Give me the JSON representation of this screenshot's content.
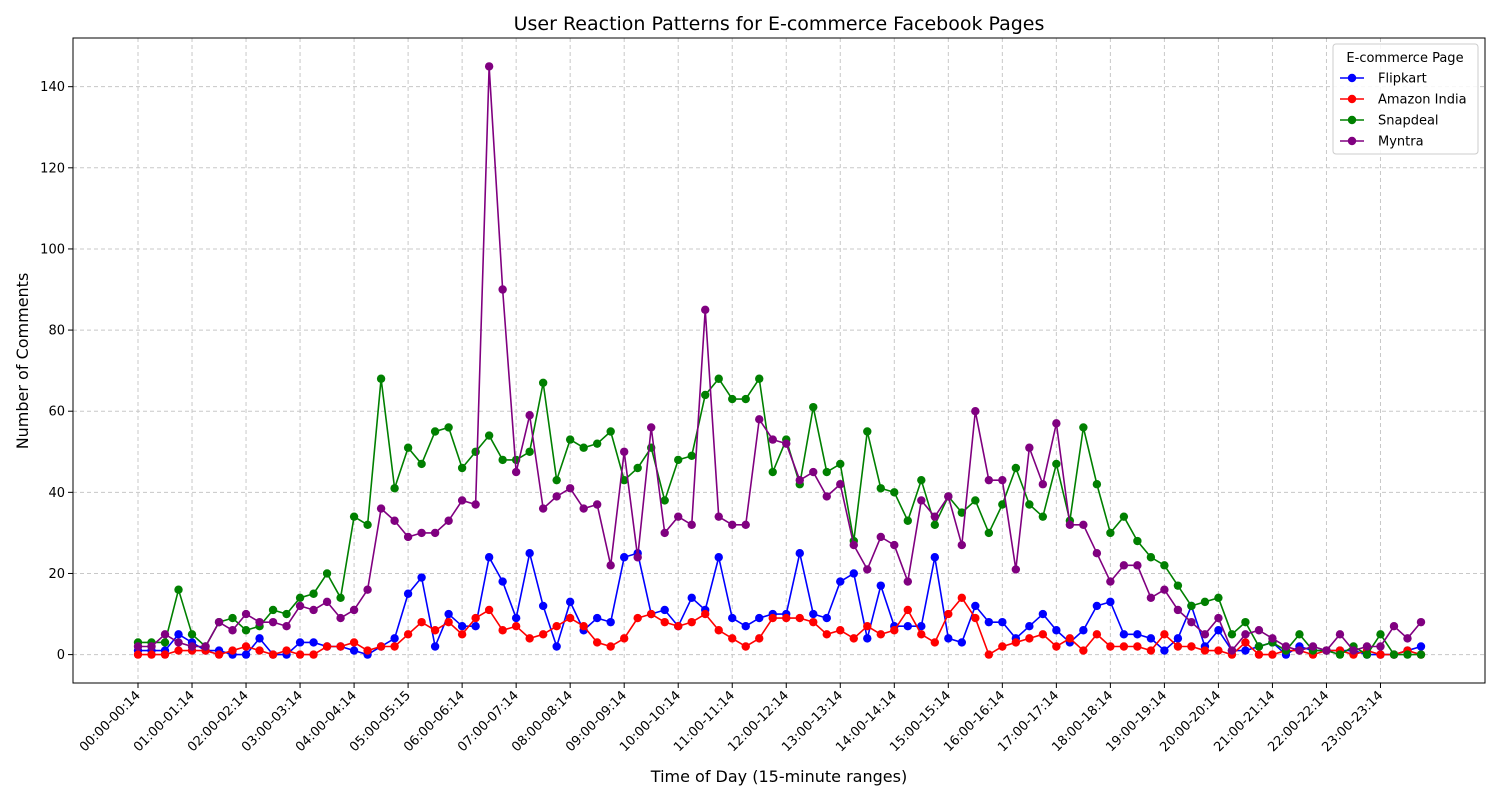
{
  "chart_data": {
    "type": "line",
    "title": "User Reaction Patterns for E-commerce Facebook Pages",
    "xlabel": "Time of Day (15-minute ranges)",
    "ylabel": "Number of Comments",
    "ylim": [
      -7,
      152
    ],
    "yticks": [
      0,
      20,
      40,
      60,
      80,
      100,
      120,
      140
    ],
    "grid": true,
    "legend": {
      "title": "E-commerce Page",
      "placement": "top-right"
    },
    "x_tick_labels": [
      "00:00-00:14",
      "01:00-01:14",
      "02:00-02:14",
      "03:00-03:14",
      "04:00-04:14",
      "05:00-05:15",
      "06:00-06:14",
      "07:00-07:14",
      "08:00-08:14",
      "09:00-09:14",
      "10:00-10:14",
      "11:00-11:14",
      "12:00-12:14",
      "13:00-13:14",
      "14:00-14:14",
      "15:00-15:14",
      "16:00-16:14",
      "17:00-17:14",
      "18:00-18:14",
      "19:00-19:14",
      "20:00-20:14",
      "21:00-21:14",
      "22:00-22:14",
      "23:00-23:14"
    ],
    "points_per_hour": 4,
    "series": [
      {
        "name": "Flipkart",
        "color": "#0000ff",
        "values": [
          1,
          1,
          1,
          5,
          3,
          1,
          1,
          0,
          0,
          4,
          0,
          0,
          3,
          3,
          2,
          2,
          1,
          0,
          2,
          4,
          15,
          19,
          2,
          10,
          7,
          7,
          24,
          18,
          9,
          25,
          12,
          2,
          13,
          6,
          9,
          8,
          24,
          25,
          10,
          11,
          7,
          14,
          11,
          24,
          9,
          7,
          9,
          10,
          10,
          25,
          10,
          9,
          18,
          20,
          4,
          17,
          7,
          7,
          7,
          24,
          4,
          3,
          12,
          8,
          8,
          4,
          7,
          10,
          6,
          3,
          6,
          12,
          13,
          5,
          5,
          4,
          1,
          4,
          12,
          2,
          6,
          1,
          1,
          2,
          3,
          0,
          2,
          1,
          1,
          1,
          1,
          0,
          0,
          0,
          1,
          2
        ]
      },
      {
        "name": "Amazon India",
        "color": "#ff0000",
        "values": [
          0,
          0,
          0,
          1,
          1,
          1,
          0,
          1,
          2,
          1,
          0,
          1,
          0,
          0,
          2,
          2,
          3,
          1,
          2,
          2,
          5,
          8,
          6,
          8,
          5,
          9,
          11,
          6,
          7,
          4,
          5,
          7,
          9,
          7,
          3,
          2,
          4,
          9,
          10,
          8,
          7,
          8,
          10,
          6,
          4,
          2,
          4,
          9,
          9,
          9,
          8,
          5,
          6,
          4,
          7,
          5,
          6,
          11,
          5,
          3,
          10,
          14,
          9,
          0,
          2,
          3,
          4,
          5,
          2,
          4,
          1,
          5,
          2,
          2,
          2,
          1,
          5,
          2,
          2,
          1,
          1,
          0,
          3,
          0,
          0,
          1,
          1,
          0,
          1,
          1,
          0,
          1,
          0,
          0,
          1,
          0
        ]
      },
      {
        "name": "Snapdeal",
        "color": "#008000",
        "values": [
          3,
          3,
          3,
          16,
          5,
          2,
          8,
          9,
          6,
          7,
          11,
          10,
          14,
          15,
          20,
          14,
          34,
          32,
          68,
          41,
          51,
          47,
          55,
          56,
          46,
          50,
          54,
          48,
          48,
          50,
          67,
          43,
          53,
          51,
          52,
          55,
          43,
          46,
          51,
          38,
          48,
          49,
          64,
          68,
          63,
          63,
          68,
          45,
          53,
          42,
          61,
          45,
          47,
          28,
          55,
          41,
          40,
          33,
          43,
          32,
          39,
          35,
          38,
          30,
          37,
          46,
          37,
          34,
          47,
          33,
          56,
          42,
          30,
          34,
          28,
          24,
          22,
          17,
          12,
          13,
          14,
          5,
          8,
          2,
          3,
          1,
          5,
          1,
          1,
          0,
          2,
          0,
          5,
          0,
          0,
          0
        ]
      },
      {
        "name": "Myntra",
        "color": "#800080",
        "values": [
          2,
          2,
          5,
          3,
          2,
          2,
          8,
          6,
          10,
          8,
          8,
          7,
          12,
          11,
          13,
          9,
          11,
          16,
          36,
          33,
          29,
          30,
          30,
          33,
          38,
          37,
          145,
          90,
          45,
          59,
          36,
          39,
          41,
          36,
          37,
          22,
          50,
          24,
          56,
          30,
          34,
          32,
          85,
          34,
          32,
          32,
          58,
          53,
          52,
          43,
          45,
          39,
          42,
          27,
          21,
          29,
          27,
          18,
          38,
          34,
          39,
          27,
          60,
          43,
          43,
          21,
          51,
          42,
          57,
          32,
          32,
          25,
          18,
          22,
          22,
          14,
          16,
          11,
          8,
          5,
          9,
          1,
          5,
          6,
          4,
          2,
          1,
          2,
          1,
          5,
          1,
          2,
          2,
          7,
          4,
          8
        ]
      }
    ]
  }
}
